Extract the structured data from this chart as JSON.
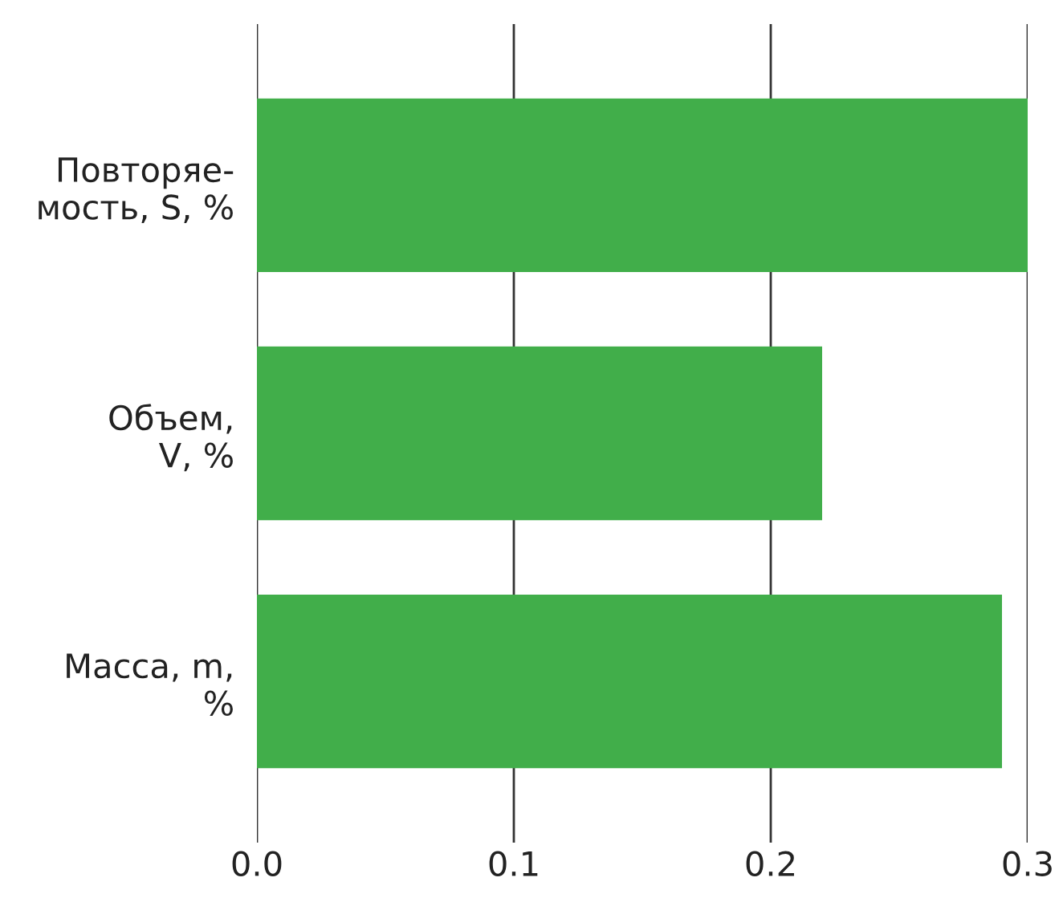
{
  "chart_data": {
    "type": "bar",
    "orientation": "horizontal",
    "categories": [
      "Повторяе-\nмость, S, %",
      "Объем,\nV, %",
      "Масса, m,\n%"
    ],
    "values": [
      0.3,
      0.22,
      0.29
    ],
    "color": "#41ae4a",
    "xlim": [
      0,
      0.3
    ],
    "xticks": [
      {
        "value": 0,
        "label": "0.0"
      },
      {
        "value": 0.1,
        "label": "0.1"
      },
      {
        "value": 0.2,
        "label": "0.2"
      },
      {
        "value": 0.3,
        "label": "0.3"
      }
    ],
    "grid": "x"
  }
}
